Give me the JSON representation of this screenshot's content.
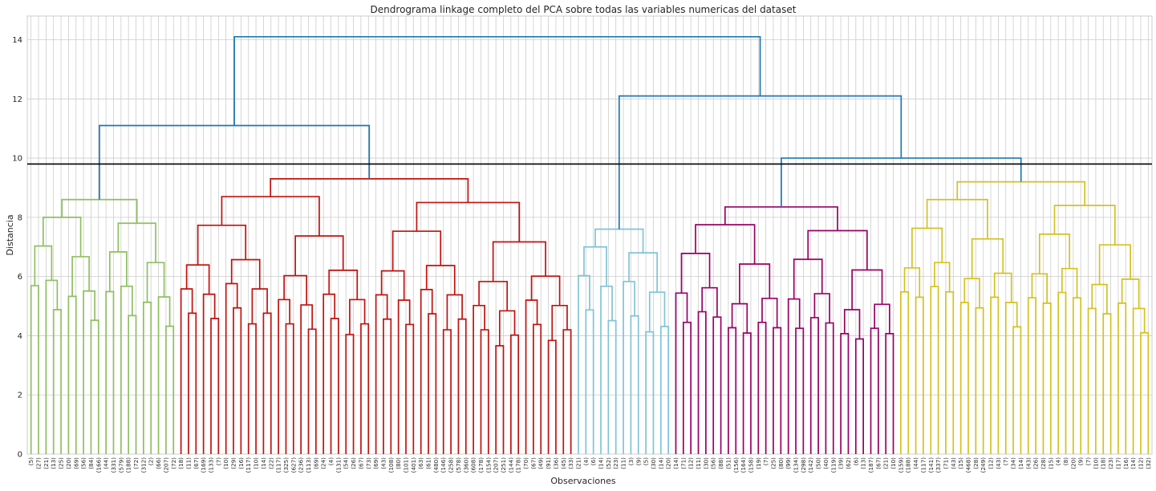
{
  "chart_data": {
    "type": "dendrogram",
    "title": "Dendrograma linkage completo del PCA sobre todas las variables numericas del dataset",
    "xlabel": "Observaciones",
    "ylabel": "Distancia",
    "ylim": [
      0,
      14.8
    ],
    "yticks": [
      0,
      2,
      4,
      6,
      8,
      10,
      12,
      14
    ],
    "grid": true,
    "cut_line": {
      "y": 9.8,
      "color": "#000000"
    },
    "colors": {
      "above_threshold": "#1f77b4",
      "green": "#8fbf5f",
      "red": "#c1120f",
      "cyan": "#7fc4d8",
      "magenta": "#990066",
      "yellow": "#d4c21e",
      "grid": "#cccccc"
    },
    "leaf_labels": [
      "(5)",
      "(27)",
      "(21)",
      "(13)",
      "(25)",
      "(20)",
      "(69)",
      "(56)",
      "(84)",
      "(166)",
      "(44)",
      "(331)",
      "(579)",
      "(188)",
      "(72)",
      "(312)",
      "(2)",
      "(66)",
      "(207)",
      "(72)",
      "(18)",
      "(11)",
      "(67)",
      "(169)",
      "(133)",
      "(7)",
      "(10)",
      "(29)",
      "(16)",
      "(117)",
      "(10)",
      "(14)",
      "(22)",
      "(117)",
      "(325)",
      "(627)",
      "(236)",
      "(113)",
      "(69)",
      "(24)",
      "(4)",
      "(131)",
      "(54)",
      "(26)",
      "(67)",
      "(73)",
      "(69)",
      "(43)",
      "(108)",
      "(80)",
      "(101)",
      "(401)",
      "(63)",
      "(61)",
      "(480)",
      "(146)",
      "(258)",
      "(578)",
      "(360)",
      "(608)",
      "(178)",
      "(154)",
      "(207)",
      "(251)",
      "(144)",
      "(178)",
      "(70)",
      "(67)",
      "(49)",
      "(91)",
      "(36)",
      "(45)",
      "(33)",
      "(21)",
      "(4)",
      "(6)",
      "(14)",
      "(52)",
      "(23)",
      "(11)",
      "(3)",
      "(9)",
      "(5)",
      "(30)",
      "(14)",
      "(20)",
      "(14)",
      "(71)",
      "(12)",
      "(11)",
      "(30)",
      "(56)",
      "(88)",
      "(51)",
      "(156)",
      "(164)",
      "(158)",
      "(19)",
      "(7)",
      "(25)",
      "(80)",
      "(99)",
      "(134)",
      "(298)",
      "(142)",
      "(50)",
      "(40)",
      "(119)",
      "(39)",
      "(62)",
      "(6)",
      "(13)",
      "(187)",
      "(67)",
      "(21)",
      "(10)",
      "(159)",
      "(188)",
      "(44)",
      "(117)",
      "(141)",
      "(337)",
      "(71)",
      "(43)",
      "(15)",
      "(468)",
      "(28)",
      "(249)",
      "(12)",
      "(43)",
      "(7)",
      "(34)",
      "(14)",
      "(43)",
      "(26)",
      "(28)",
      "(15)",
      "(4)",
      "(8)",
      "(20)",
      "(9)",
      "(7)",
      "(10)",
      "(18)",
      "(23)",
      "(17)",
      "(16)",
      "(14)",
      "(12)",
      "(32)"
    ],
    "links": [
      {
        "c": "green",
        "l": 1,
        "r": [
          2,
          3
        ],
        "h": 4.5
      },
      {
        "c": "green",
        "l": [
          0,
          0
        ],
        "r": [
          1,
          3
        ],
        "h": 5.75
      },
      {
        "c": "green",
        "l": [
          4,
          4
        ],
        "r": [
          5,
          5
        ],
        "h": 5.6
      },
      {
        "c": "green",
        "l": [
          7,
          7
        ],
        "r": [
          8,
          8
        ],
        "h": 4.4
      },
      {
        "c": "green",
        "l": [
          6,
          6
        ],
        "r": [
          7,
          8
        ],
        "h": 5.6
      },
      {
        "c": "green",
        "l": [
          9,
          9
        ],
        "r": [
          10,
          10
        ],
        "h": 5.1
      },
      {
        "c": "green",
        "l": [
          11,
          11
        ],
        "r": [
          12,
          13
        ],
        "h": 4.5
      },
      {
        "c": "green",
        "l": [
          14,
          14
        ],
        "r": [
          15,
          15
        ],
        "h": 4.3
      },
      {
        "c": "green",
        "l": [
          16,
          16
        ],
        "r": [
          17,
          18
        ],
        "h": 5.2
      },
      {
        "c": "cyan",
        "l": [
          75,
          75
        ],
        "r": [
          76,
          76
        ],
        "h": 4.3
      },
      {
        "c": "magenta",
        "l": [
          116,
          116
        ],
        "r": [
          117,
          117
        ],
        "h": 3.7
      }
    ]
  }
}
